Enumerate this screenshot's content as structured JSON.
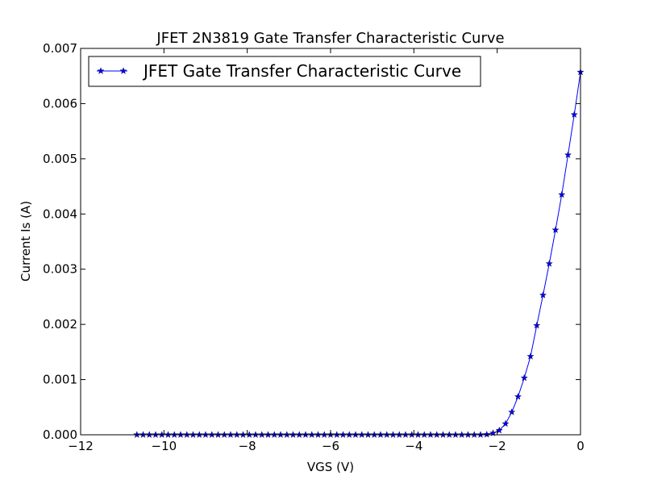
{
  "chart_data": {
    "type": "line",
    "title": "JFET 2N3819 Gate Transfer Characteristic Curve",
    "xlabel": "VGS (V)",
    "ylabel": "Current Is (A)",
    "xlim": [
      -12,
      0
    ],
    "ylim": [
      0,
      0.007
    ],
    "x_ticks": [
      -12,
      -10,
      -8,
      -6,
      -4,
      -2,
      0
    ],
    "x_tick_labels": [
      "−12",
      "−10",
      "−8",
      "−6",
      "−4",
      "−2",
      "0"
    ],
    "y_ticks": [
      0,
      0.001,
      0.002,
      0.003,
      0.004,
      0.005,
      0.006,
      0.007
    ],
    "y_tick_labels": [
      "0.000",
      "0.001",
      "0.002",
      "0.003",
      "0.004",
      "0.005",
      "0.006",
      "0.007"
    ],
    "grid": false,
    "legend": {
      "position": "top-left",
      "marker": "star"
    },
    "colors": {
      "series": "#0000ff",
      "frame": "#000000"
    },
    "series": [
      {
        "name": "JFET Gate Transfer Characteristic Curve",
        "x": [
          -10.65,
          -10.5,
          -10.35,
          -10.2,
          -10.05,
          -9.9,
          -9.75,
          -9.6,
          -9.45,
          -9.3,
          -9.15,
          -9.0,
          -8.85,
          -8.7,
          -8.55,
          -8.4,
          -8.25,
          -8.1,
          -7.95,
          -7.8,
          -7.65,
          -7.5,
          -7.35,
          -7.2,
          -7.05,
          -6.9,
          -6.75,
          -6.6,
          -6.45,
          -6.3,
          -6.15,
          -6.0,
          -5.85,
          -5.7,
          -5.55,
          -5.4,
          -5.25,
          -5.1,
          -4.95,
          -4.8,
          -4.65,
          -4.5,
          -4.35,
          -4.2,
          -4.05,
          -3.9,
          -3.75,
          -3.6,
          -3.45,
          -3.3,
          -3.15,
          -3.0,
          -2.85,
          -2.7,
          -2.55,
          -2.4,
          -2.25,
          -2.1,
          -1.95,
          -1.8,
          -1.65,
          -1.5,
          -1.35,
          -1.2,
          -1.05,
          -0.9,
          -0.75,
          -0.6,
          -0.45,
          -0.3,
          -0.15,
          0.0
        ],
        "y": [
          0,
          0,
          0,
          0,
          0,
          0,
          0,
          0,
          0,
          0,
          0,
          0,
          0,
          0,
          0,
          0,
          0,
          0,
          0,
          0,
          0,
          0,
          0,
          0,
          0,
          0,
          0,
          0,
          0,
          0,
          0,
          0,
          0,
          0,
          0,
          0,
          0,
          0,
          0,
          0,
          0,
          0,
          0,
          0,
          0,
          0,
          0,
          0,
          0,
          0,
          0,
          0,
          0,
          0,
          0,
          0,
          5e-06,
          3e-05,
          8e-05,
          0.0002,
          0.00041,
          0.00069,
          0.00103,
          0.00142,
          0.00198,
          0.00253,
          0.0031,
          0.00371,
          0.00435,
          0.00507,
          0.0058,
          0.00657
        ]
      }
    ]
  }
}
